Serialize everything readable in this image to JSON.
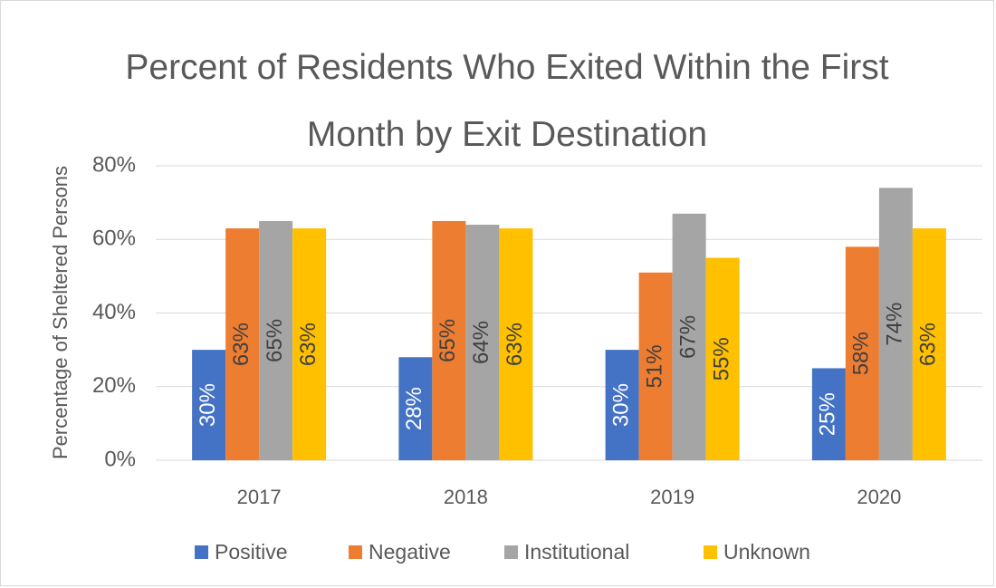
{
  "chart_data": {
    "type": "bar",
    "title": "Percent of Residents Who Exited Within the First Month by Exit Destination",
    "y_label": "Percentage of Sheltered Persons",
    "categories": [
      "2017",
      "2018",
      "2019",
      "2020"
    ],
    "series": [
      {
        "name": "Positive",
        "color": "#4472c4",
        "values": [
          30,
          28,
          30,
          25
        ],
        "value_labels": [
          "30%",
          "28%",
          "30%",
          "25%"
        ]
      },
      {
        "name": "Negative",
        "color": "#ed7d31",
        "values": [
          63,
          65,
          51,
          58
        ],
        "value_labels": [
          "63%",
          "65%",
          "51%",
          "58%"
        ]
      },
      {
        "name": "Institutional",
        "color": "#a5a5a5",
        "values": [
          65,
          64,
          67,
          74
        ],
        "value_labels": [
          "65%",
          "64%",
          "67%",
          "74%"
        ]
      },
      {
        "name": "Unknown",
        "color": "#ffc000",
        "values": [
          63,
          63,
          55,
          63
        ],
        "value_labels": [
          "63%",
          "63%",
          "55%",
          "63%"
        ]
      }
    ],
    "ylim": [
      0,
      80
    ],
    "yticks": [
      {
        "value": 0,
        "label": "0%"
      },
      {
        "value": 20,
        "label": "20%"
      },
      {
        "value": 40,
        "label": "40%"
      },
      {
        "value": 60,
        "label": "60%"
      },
      {
        "value": 80,
        "label": "80%"
      }
    ],
    "grid": true,
    "legend": "bottom"
  }
}
